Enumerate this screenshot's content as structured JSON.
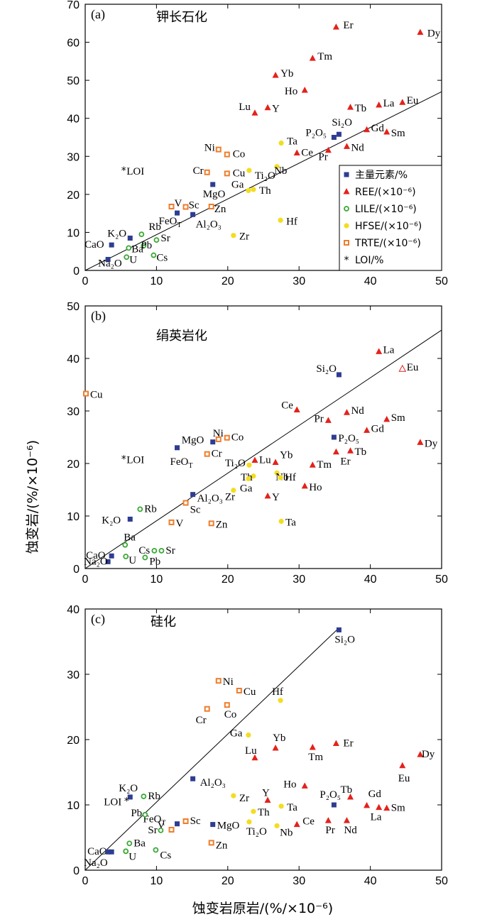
{
  "colors": {
    "major": "#2e3d91",
    "ree": "#e3221b",
    "lile": "#3aa935",
    "hfse": "#f2dd21",
    "trte": "#ee7d2c",
    "loi": "#000000"
  },
  "axes": {
    "x_title": "蚀变岩原岩/(%/×10⁻⁶)",
    "y_title": "蚀变岩/(%/×10⁻⁶)"
  },
  "legend": [
    {
      "group": "major",
      "marker": "square",
      "label": "主量元素/%"
    },
    {
      "group": "ree",
      "marker": "triangle",
      "label": "REE/(×10⁻⁶)"
    },
    {
      "group": "lile",
      "marker": "circle-open",
      "label": "LILE/(×10⁻⁶)"
    },
    {
      "group": "hfse",
      "marker": "circle",
      "label": "HFSE/(×10⁻⁶)"
    },
    {
      "group": "trte",
      "marker": "square-open",
      "label": "TRTE/(×10⁻⁶)"
    },
    {
      "group": "loi",
      "marker": "star",
      "label": "LOI/%"
    }
  ],
  "chart_data": [
    {
      "type": "scatter",
      "panel": "(a)",
      "title": "钾长石化",
      "xlim": [
        0,
        50
      ],
      "ylim": [
        0,
        70
      ],
      "xticks": [
        0,
        10,
        20,
        30,
        40,
        50
      ],
      "yticks": [
        0,
        10,
        20,
        30,
        40,
        50,
        60,
        70
      ],
      "reference_line": {
        "from": [
          0,
          0
        ],
        "to": [
          50,
          47
        ]
      },
      "points": [
        {
          "label": "Er",
          "group": "ree",
          "x": 35.2,
          "y": 64.0
        },
        {
          "label": "Dy",
          "group": "ree",
          "x": 47.0,
          "y": 62.6
        },
        {
          "label": "Tm",
          "group": "ree",
          "x": 31.9,
          "y": 55.8
        },
        {
          "label": "Yb",
          "group": "ree",
          "x": 26.7,
          "y": 51.3
        },
        {
          "label": "Ho",
          "group": "ree",
          "x": 30.8,
          "y": 47.4
        },
        {
          "label": "Lu",
          "group": "ree",
          "x": 23.8,
          "y": 41.4
        },
        {
          "label": "Y",
          "group": "ree",
          "x": 25.6,
          "y": 42.8
        },
        {
          "label": "Tb",
          "group": "ree",
          "x": 37.2,
          "y": 42.9
        },
        {
          "label": "La",
          "group": "ree",
          "x": 41.2,
          "y": 43.5
        },
        {
          "label": "Eu",
          "group": "ree",
          "x": 44.5,
          "y": 44.2
        },
        {
          "label": "Gd",
          "group": "ree",
          "x": 39.5,
          "y": 37.0
        },
        {
          "label": "Sm",
          "group": "ree",
          "x": 42.3,
          "y": 36.4
        },
        {
          "label": "Nd",
          "group": "ree",
          "x": 36.7,
          "y": 32.6
        },
        {
          "label": "Pr",
          "group": "ree",
          "x": 34.1,
          "y": 31.6
        },
        {
          "label": "Ce",
          "group": "ree",
          "x": 29.7,
          "y": 30.9
        },
        {
          "label": "Si₂O",
          "group": "major",
          "x": 35.6,
          "y": 35.8
        },
        {
          "label": "P₂O₅",
          "group": "major",
          "x": 34.9,
          "y": 35.0
        },
        {
          "label": "MgO",
          "group": "major",
          "x": 17.9,
          "y": 22.6
        },
        {
          "label": "FeOT",
          "group": "major",
          "x": 12.9,
          "y": 15.1
        },
        {
          "label": "Al₂O₃",
          "group": "major",
          "x": 15.1,
          "y": 14.7
        },
        {
          "label": "K₂O",
          "group": "major",
          "x": 6.3,
          "y": 8.5
        },
        {
          "label": "CaO",
          "group": "major",
          "x": 3.7,
          "y": 6.7
        },
        {
          "label": "Na₂O",
          "group": "major",
          "x": 3.2,
          "y": 2.9
        },
        {
          "label": "Ta",
          "group": "hfse",
          "x": 27.5,
          "y": 33.5
        },
        {
          "label": "Nb",
          "group": "hfse",
          "x": 26.9,
          "y": 27.3
        },
        {
          "label": "Ti₂O",
          "group": "hfse",
          "x": 23.0,
          "y": 26.3
        },
        {
          "label": "Th",
          "group": "hfse",
          "x": 23.6,
          "y": 21.3
        },
        {
          "label": "Ga",
          "group": "hfse",
          "x": 22.9,
          "y": 21.0
        },
        {
          "label": "Hf",
          "group": "hfse",
          "x": 27.4,
          "y": 13.2
        },
        {
          "label": "Zr",
          "group": "hfse",
          "x": 20.8,
          "y": 9.2
        },
        {
          "label": "Ni",
          "group": "trte",
          "x": 18.7,
          "y": 31.8
        },
        {
          "label": "Co",
          "group": "trte",
          "x": 19.9,
          "y": 30.5
        },
        {
          "label": "Cr",
          "group": "trte",
          "x": 17.1,
          "y": 25.8
        },
        {
          "label": "Cu",
          "group": "trte",
          "x": 19.9,
          "y": 25.5
        },
        {
          "label": "V",
          "group": "trte",
          "x": 12.1,
          "y": 16.8
        },
        {
          "label": "Sc",
          "group": "trte",
          "x": 14.1,
          "y": 16.7
        },
        {
          "label": "Zn",
          "group": "trte",
          "x": 17.7,
          "y": 16.8
        },
        {
          "label": "Rb",
          "group": "lile",
          "x": 7.9,
          "y": 9.5
        },
        {
          "label": "Sr",
          "group": "lile",
          "x": 10.0,
          "y": 8.0
        },
        {
          "label": "Pb",
          "group": "lile",
          "x": 8.2,
          "y": 6.5
        },
        {
          "label": "Ba",
          "group": "lile",
          "x": 6.1,
          "y": 5.9
        },
        {
          "label": "U",
          "group": "lile",
          "x": 5.8,
          "y": 3.5
        },
        {
          "label": "Cs",
          "group": "lile",
          "x": 9.6,
          "y": 4.0
        },
        {
          "label": "LOI",
          "group": "loi",
          "x": 5.4,
          "y": 26.3
        }
      ]
    },
    {
      "type": "scatter",
      "panel": "(b)",
      "title": "绢英岩化",
      "xlim": [
        0,
        50
      ],
      "ylim": [
        0,
        50
      ],
      "xticks": [
        0,
        10,
        20,
        30,
        40,
        50
      ],
      "yticks": [
        0,
        10,
        20,
        30,
        40,
        50
      ],
      "reference_line": {
        "from": [
          0,
          0
        ],
        "to": [
          50,
          45.4
        ]
      },
      "points": [
        {
          "label": "La",
          "group": "ree",
          "x": 41.2,
          "y": 41.3
        },
        {
          "label": "Eu",
          "group": "ree",
          "x": 44.5,
          "y": 38.0
        },
        {
          "label": "Ce",
          "group": "ree",
          "x": 29.7,
          "y": 30.2
        },
        {
          "label": "Nd",
          "group": "ree",
          "x": 36.7,
          "y": 29.7
        },
        {
          "label": "Sm",
          "group": "ree",
          "x": 42.3,
          "y": 28.4
        },
        {
          "label": "Pr",
          "group": "ree",
          "x": 34.1,
          "y": 28.2
        },
        {
          "label": "Gd",
          "group": "ree",
          "x": 39.5,
          "y": 26.3
        },
        {
          "label": "Dy",
          "group": "ree",
          "x": 47.0,
          "y": 24.0
        },
        {
          "label": "Tb",
          "group": "ree",
          "x": 37.2,
          "y": 22.4
        },
        {
          "label": "Er",
          "group": "ree",
          "x": 35.2,
          "y": 22.2
        },
        {
          "label": "Yb",
          "group": "ree",
          "x": 26.7,
          "y": 20.2
        },
        {
          "label": "Lu",
          "group": "ree",
          "x": 23.8,
          "y": 20.6
        },
        {
          "label": "Tm",
          "group": "ree",
          "x": 31.9,
          "y": 19.7
        },
        {
          "label": "Ho",
          "group": "ree",
          "x": 30.8,
          "y": 15.7
        },
        {
          "label": "Y",
          "group": "ree",
          "x": 25.6,
          "y": 13.8
        },
        {
          "label": "Si₂O",
          "group": "major",
          "x": 35.6,
          "y": 36.9
        },
        {
          "label": "P₂O₅",
          "group": "major",
          "x": 34.9,
          "y": 25.0
        },
        {
          "label": "MgO",
          "group": "major",
          "x": 17.9,
          "y": 24.1
        },
        {
          "label": "FeOT",
          "group": "major",
          "x": 12.9,
          "y": 23.0
        },
        {
          "label": "Al₂O₃",
          "group": "major",
          "x": 15.1,
          "y": 14.1
        },
        {
          "label": "K₂O",
          "group": "major",
          "x": 6.3,
          "y": 9.4
        },
        {
          "label": "CaO",
          "group": "major",
          "x": 3.7,
          "y": 2.4
        },
        {
          "label": "Na₂O",
          "group": "major",
          "x": 3.2,
          "y": 1.3
        },
        {
          "label": "Nb",
          "group": "hfse",
          "x": 26.9,
          "y": 18.2
        },
        {
          "label": "Ti₂O",
          "group": "hfse",
          "x": 23.0,
          "y": 19.7
        },
        {
          "label": "Hf",
          "group": "hfse",
          "x": 27.4,
          "y": 17.3
        },
        {
          "label": "Th",
          "group": "hfse",
          "x": 23.6,
          "y": 17.6
        },
        {
          "label": "Ga",
          "group": "hfse",
          "x": 22.9,
          "y": 17.1
        },
        {
          "label": "Zr",
          "group": "hfse",
          "x": 20.8,
          "y": 14.9
        },
        {
          "label": "Ta",
          "group": "hfse",
          "x": 27.5,
          "y": 9.0
        },
        {
          "label": "Cu",
          "group": "trte",
          "x": 0.1,
          "y": 33.3
        },
        {
          "label": "Ni",
          "group": "trte",
          "x": 18.7,
          "y": 24.6
        },
        {
          "label": "Co",
          "group": "trte",
          "x": 19.9,
          "y": 24.9
        },
        {
          "label": "Cr",
          "group": "trte",
          "x": 17.1,
          "y": 21.8
        },
        {
          "label": "Sc",
          "group": "trte",
          "x": 14.1,
          "y": 12.5
        },
        {
          "label": "V",
          "group": "trte",
          "x": 12.1,
          "y": 8.8
        },
        {
          "label": "Zn",
          "group": "trte",
          "x": 17.7,
          "y": 8.6
        },
        {
          "label": "Rb",
          "group": "lile",
          "x": 7.7,
          "y": 11.3
        },
        {
          "label": "Ba",
          "group": "lile",
          "x": 5.6,
          "y": 4.5
        },
        {
          "label": "Cs",
          "group": "lile",
          "x": 9.7,
          "y": 3.4
        },
        {
          "label": "Sr",
          "group": "lile",
          "x": 10.7,
          "y": 3.4
        },
        {
          "label": "U",
          "group": "lile",
          "x": 5.7,
          "y": 2.3
        },
        {
          "label": "Pb",
          "group": "lile",
          "x": 8.4,
          "y": 2.1
        },
        {
          "label": "LOI",
          "group": "loi",
          "x": 5.4,
          "y": 20.9
        }
      ]
    },
    {
      "type": "scatter",
      "panel": "(c)",
      "title": "硅化",
      "xlim": [
        0,
        50
      ],
      "ylim": [
        0,
        40
      ],
      "xticks": [
        0,
        10,
        20,
        30,
        40,
        50
      ],
      "yticks": [
        0,
        10,
        20,
        30,
        40
      ],
      "reference_line": {
        "from": [
          0,
          0
        ],
        "to": [
          35.5,
          37
        ]
      },
      "points": [
        {
          "label": "Si₂O",
          "group": "major",
          "x": 35.6,
          "y": 36.8
        },
        {
          "label": "Al₂O₃",
          "group": "major",
          "x": 15.1,
          "y": 14.0
        },
        {
          "label": "P₂O₅",
          "group": "major",
          "x": 34.9,
          "y": 10.0
        },
        {
          "label": "K₂O",
          "group": "major",
          "x": 6.3,
          "y": 11.2
        },
        {
          "label": "FeOT",
          "group": "major",
          "x": 12.9,
          "y": 7.1
        },
        {
          "label": "MgO",
          "group": "major",
          "x": 17.9,
          "y": 7.0
        },
        {
          "label": "CaO",
          "group": "major",
          "x": 3.7,
          "y": 2.8
        },
        {
          "label": "Na₂O",
          "group": "major",
          "x": 3.2,
          "y": 2.8
        },
        {
          "label": "Ni",
          "group": "trte",
          "x": 18.7,
          "y": 29.0
        },
        {
          "label": "Cu",
          "group": "trte",
          "x": 21.6,
          "y": 27.5
        },
        {
          "label": "Co",
          "group": "trte",
          "x": 19.9,
          "y": 25.3
        },
        {
          "label": "Cr",
          "group": "trte",
          "x": 17.1,
          "y": 24.7
        },
        {
          "label": "Sc",
          "group": "trte",
          "x": 14.1,
          "y": 7.5
        },
        {
          "label": "V",
          "group": "trte",
          "x": 12.1,
          "y": 6.2
        },
        {
          "label": "Zn",
          "group": "trte",
          "x": 17.7,
          "y": 4.2
        },
        {
          "label": "Hf",
          "group": "hfse",
          "x": 27.4,
          "y": 26.0
        },
        {
          "label": "Ga",
          "group": "hfse",
          "x": 22.9,
          "y": 20.7
        },
        {
          "label": "Zr",
          "group": "hfse",
          "x": 20.8,
          "y": 11.4
        },
        {
          "label": "Th",
          "group": "hfse",
          "x": 23.6,
          "y": 9.0
        },
        {
          "label": "Ta",
          "group": "hfse",
          "x": 27.5,
          "y": 9.8
        },
        {
          "label": "Ti₂O",
          "group": "hfse",
          "x": 23.0,
          "y": 7.4
        },
        {
          "label": "Nb",
          "group": "hfse",
          "x": 26.9,
          "y": 6.8
        },
        {
          "label": "Yb",
          "group": "ree",
          "x": 26.7,
          "y": 18.7
        },
        {
          "label": "Er",
          "group": "ree",
          "x": 35.2,
          "y": 19.4
        },
        {
          "label": "Tm",
          "group": "ree",
          "x": 31.9,
          "y": 18.8
        },
        {
          "label": "Lu",
          "group": "ree",
          "x": 23.8,
          "y": 17.2
        },
        {
          "label": "Dy",
          "group": "ree",
          "x": 47.0,
          "y": 17.7
        },
        {
          "label": "Eu",
          "group": "ree",
          "x": 44.5,
          "y": 16.0
        },
        {
          "label": "Ho",
          "group": "ree",
          "x": 30.8,
          "y": 12.9
        },
        {
          "label": "Y",
          "group": "ree",
          "x": 25.6,
          "y": 10.7
        },
        {
          "label": "Tb",
          "group": "ree",
          "x": 37.2,
          "y": 11.2
        },
        {
          "label": "Gd",
          "group": "ree",
          "x": 39.5,
          "y": 9.9
        },
        {
          "label": "La",
          "group": "ree",
          "x": 41.2,
          "y": 9.6
        },
        {
          "label": "Sm",
          "group": "ree",
          "x": 42.3,
          "y": 9.5
        },
        {
          "label": "Ce",
          "group": "ree",
          "x": 29.7,
          "y": 7.0
        },
        {
          "label": "Pr",
          "group": "ree",
          "x": 34.1,
          "y": 7.6
        },
        {
          "label": "Nd",
          "group": "ree",
          "x": 36.7,
          "y": 7.6
        },
        {
          "label": "Rb",
          "group": "lile",
          "x": 8.2,
          "y": 11.3
        },
        {
          "label": "Pb",
          "group": "lile",
          "x": 8.4,
          "y": 8.5
        },
        {
          "label": "Sr",
          "group": "lile",
          "x": 10.6,
          "y": 6.1
        },
        {
          "label": "Ba",
          "group": "lile",
          "x": 6.2,
          "y": 4.1
        },
        {
          "label": "U",
          "group": "lile",
          "x": 5.7,
          "y": 2.9
        },
        {
          "label": "Cs",
          "group": "lile",
          "x": 9.9,
          "y": 3.1
        },
        {
          "label": "LOI",
          "group": "loi",
          "x": 5.8,
          "y": 10.6
        }
      ]
    }
  ]
}
